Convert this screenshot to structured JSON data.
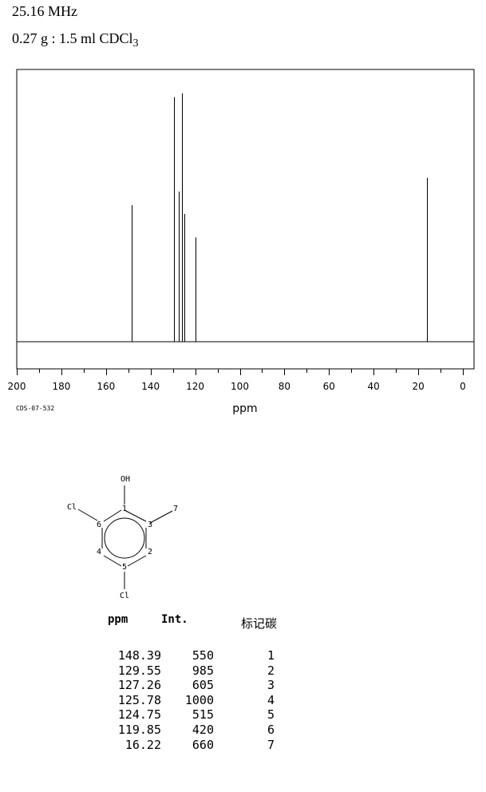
{
  "header": {
    "line1": "25.16 MHz",
    "line2_main": "0.27 g : 1.5 ml CDCl",
    "line2_sub": "3"
  },
  "chart_data": {
    "type": "line",
    "xlabel": "ppm",
    "xlim": [
      200,
      0
    ],
    "x_ticks": [
      "200",
      "180",
      "160",
      "140",
      "120",
      "100",
      "80",
      "60",
      "40",
      "20",
      "0"
    ],
    "peaks": [
      {
        "ppm": 148.39,
        "intensity": 550
      },
      {
        "ppm": 129.55,
        "intensity": 985
      },
      {
        "ppm": 127.26,
        "intensity": 605
      },
      {
        "ppm": 125.78,
        "intensity": 1000
      },
      {
        "ppm": 124.75,
        "intensity": 515
      },
      {
        "ppm": 119.85,
        "intensity": 420
      },
      {
        "ppm": 16.22,
        "intensity": 660
      }
    ],
    "code": "CDS-07-532"
  },
  "structure": {
    "atoms": [
      "OH",
      "Cl",
      "Cl",
      "1",
      "2",
      "3",
      "4",
      "5",
      "6",
      "7"
    ]
  },
  "table": {
    "header_ppm": "ppm",
    "header_int": "Int.",
    "header_label": "标记碳",
    "rows": [
      {
        "ppm": "148.39",
        "int": "550",
        "label": "1"
      },
      {
        "ppm": "129.55",
        "int": "985",
        "label": "2"
      },
      {
        "ppm": "127.26",
        "int": "605",
        "label": "3"
      },
      {
        "ppm": "125.78",
        "int": "1000",
        "label": "4"
      },
      {
        "ppm": "124.75",
        "int": "515",
        "label": "5"
      },
      {
        "ppm": "119.85",
        "int": "420",
        "label": "6"
      },
      {
        "ppm": "16.22",
        "int": "660",
        "label": "7"
      }
    ]
  }
}
